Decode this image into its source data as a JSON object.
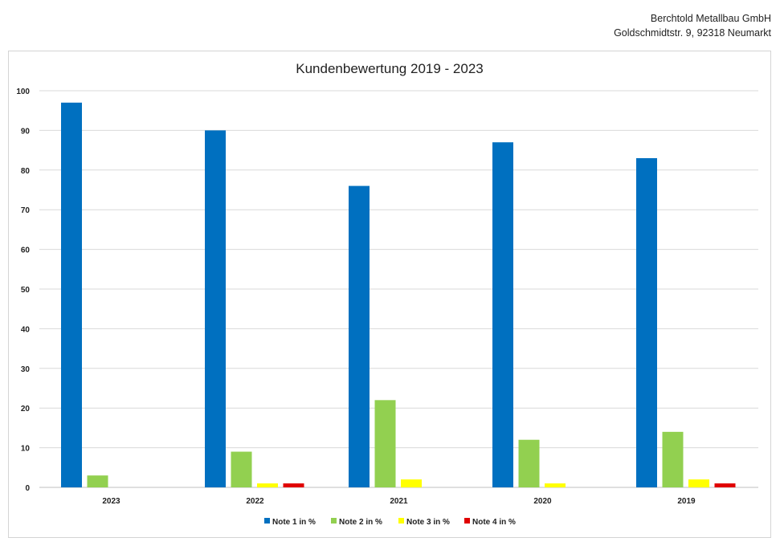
{
  "company": {
    "name": "Berchtold Metallbau GmbH",
    "address": "Goldschmidtstr. 9, 92318 Neumarkt"
  },
  "chart_data": {
    "type": "bar",
    "title": "Kundenbewertung 2019 - 2023",
    "xlabel": "",
    "ylabel": "",
    "ylim": [
      0,
      100
    ],
    "yticks": [
      0,
      10,
      20,
      30,
      40,
      50,
      60,
      70,
      80,
      90,
      100
    ],
    "grid": true,
    "legend_position": "bottom",
    "categories": [
      "2023",
      "2022",
      "2021",
      "2020",
      "2019"
    ],
    "series": [
      {
        "name": "Note 1 in %",
        "color": "#0070c0",
        "values": [
          97,
          90,
          76,
          87,
          83
        ]
      },
      {
        "name": "Note 2 in %",
        "color": "#92d050",
        "values": [
          3,
          9,
          22,
          12,
          14
        ]
      },
      {
        "name": "Note 3 in %",
        "color": "#ffff00",
        "values": [
          0,
          1,
          2,
          1,
          2
        ]
      },
      {
        "name": "Note 4 in %",
        "color": "#e00000",
        "values": [
          0,
          1,
          0,
          0,
          1
        ]
      }
    ]
  }
}
